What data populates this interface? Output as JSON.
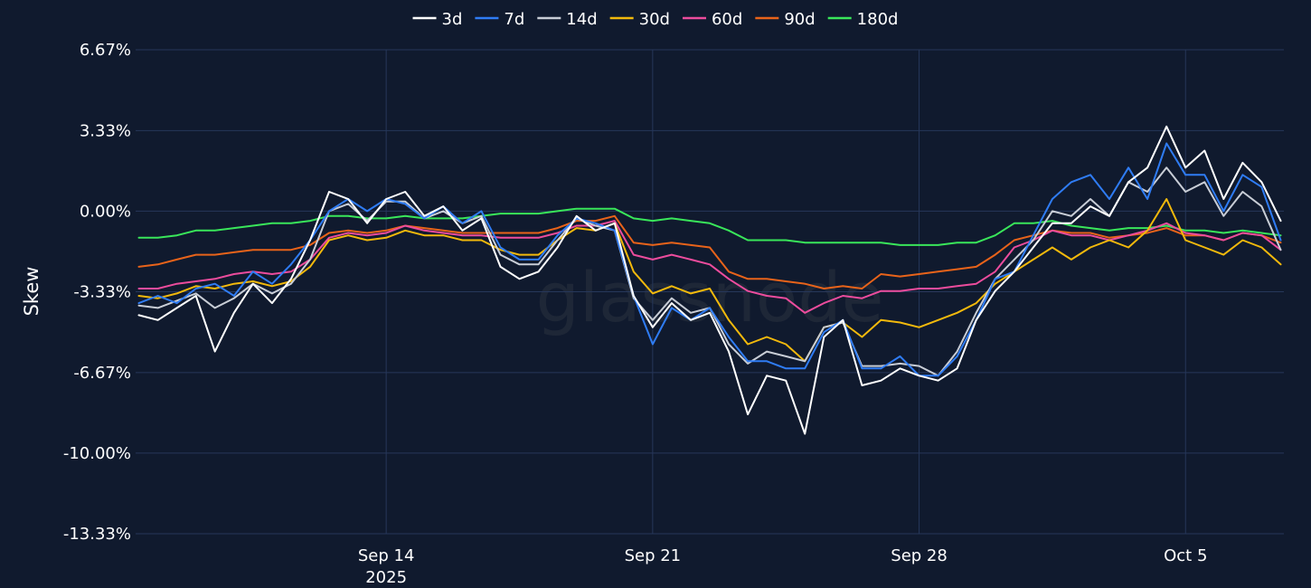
{
  "chart_data": {
    "type": "line",
    "ylabel": "Skew",
    "y_ticks": [
      "6.67%",
      "3.33%",
      "0.00%",
      "-3.33%",
      "-6.67%",
      "-10.00%",
      "-13.33%"
    ],
    "y_tick_values": [
      6.67,
      3.33,
      0.0,
      -3.33,
      -6.67,
      -10.0,
      -13.33
    ],
    "ylim": [
      -13.33,
      6.67
    ],
    "x_ticks": [
      {
        "label": "Sep 14",
        "sublabel": "2025",
        "date": "2025-09-14"
      },
      {
        "label": "Sep 21",
        "sublabel": "",
        "date": "2025-09-21"
      },
      {
        "label": "Sep 28",
        "sublabel": "",
        "date": "2025-09-28"
      },
      {
        "label": "Oct 5",
        "sublabel": "",
        "date": "2025-10-05"
      }
    ],
    "xlim": [
      "2025-09-07T10:00",
      "2025-10-07T14:00"
    ],
    "grid": true,
    "legend_position": "top-center",
    "watermark": "glassnode",
    "x": [
      "2025-09-07T12:00",
      "2025-09-08",
      "2025-09-08T12:00",
      "2025-09-09",
      "2025-09-09T12:00",
      "2025-09-10",
      "2025-09-10T12:00",
      "2025-09-11",
      "2025-09-11T12:00",
      "2025-09-12",
      "2025-09-12T12:00",
      "2025-09-13",
      "2025-09-13T12:00",
      "2025-09-14",
      "2025-09-14T12:00",
      "2025-09-15",
      "2025-09-15T12:00",
      "2025-09-16",
      "2025-09-16T12:00",
      "2025-09-17",
      "2025-09-17T12:00",
      "2025-09-18",
      "2025-09-18T12:00",
      "2025-09-19",
      "2025-09-19T12:00",
      "2025-09-20",
      "2025-09-20T12:00",
      "2025-09-21",
      "2025-09-21T12:00",
      "2025-09-22",
      "2025-09-22T12:00",
      "2025-09-23",
      "2025-09-23T12:00",
      "2025-09-24",
      "2025-09-24T12:00",
      "2025-09-25",
      "2025-09-25T12:00",
      "2025-09-26",
      "2025-09-26T12:00",
      "2025-09-27",
      "2025-09-27T12:00",
      "2025-09-28",
      "2025-09-28T12:00",
      "2025-09-29",
      "2025-09-29T12:00",
      "2025-09-30",
      "2025-09-30T12:00",
      "2025-10-01",
      "2025-10-01T12:00",
      "2025-10-02",
      "2025-10-02T12:00",
      "2025-10-03",
      "2025-10-03T12:00",
      "2025-10-04",
      "2025-10-04T12:00",
      "2025-10-05",
      "2025-10-05T12:00",
      "2025-10-06",
      "2025-10-06T12:00",
      "2025-10-07",
      "2025-10-07T12:00"
    ],
    "series": [
      {
        "name": "3d",
        "color": "#ffffff",
        "values": [
          -4.3,
          -4.5,
          -4.0,
          -3.5,
          -5.8,
          -4.2,
          -3.0,
          -3.8,
          -2.8,
          -1.2,
          0.8,
          0.5,
          -0.5,
          0.5,
          0.8,
          -0.2,
          0.2,
          -0.8,
          -0.3,
          -2.3,
          -2.8,
          -2.5,
          -1.5,
          -0.2,
          -0.8,
          -0.5,
          -3.5,
          -4.8,
          -3.8,
          -4.5,
          -4.2,
          -5.8,
          -8.4,
          -6.8,
          -7.0,
          -9.2,
          -5.2,
          -4.5,
          -7.2,
          -7.0,
          -6.5,
          -6.8,
          -7.0,
          -6.5,
          -4.5,
          -3.3,
          -2.5,
          -1.5,
          -0.5,
          -0.5,
          0.2,
          -0.2,
          1.2,
          1.8,
          3.5,
          1.8,
          2.5,
          0.5,
          2.0,
          1.2,
          -0.4
        ]
      },
      {
        "name": "7d",
        "color": "#2f7cf4",
        "values": [
          -3.8,
          -3.5,
          -3.8,
          -3.2,
          -3.0,
          -3.5,
          -2.5,
          -3.0,
          -2.2,
          -1.2,
          0.0,
          0.5,
          0.0,
          0.5,
          0.3,
          -0.3,
          0.2,
          -0.5,
          0.0,
          -1.5,
          -2.0,
          -2.0,
          -1.0,
          -0.3,
          -0.5,
          -0.8,
          -3.5,
          -5.5,
          -4.0,
          -4.5,
          -4.0,
          -5.2,
          -6.2,
          -6.2,
          -6.5,
          -6.5,
          -5.0,
          -4.5,
          -6.5,
          -6.5,
          -6.0,
          -6.8,
          -6.8,
          -6.0,
          -4.5,
          -2.8,
          -2.5,
          -1.0,
          0.5,
          1.2,
          1.5,
          0.5,
          1.8,
          0.5,
          2.8,
          1.5,
          1.5,
          0.0,
          1.5,
          1.0,
          -1.2
        ]
      },
      {
        "name": "14d",
        "color": "#c8cdd6",
        "values": [
          -3.9,
          -4.0,
          -3.7,
          -3.4,
          -4.0,
          -3.6,
          -3.0,
          -3.4,
          -3.0,
          -2.0,
          0.0,
          0.3,
          -0.4,
          0.4,
          0.4,
          -0.3,
          0.0,
          -0.5,
          -0.2,
          -1.8,
          -2.2,
          -2.2,
          -1.2,
          -0.3,
          -0.6,
          -0.8,
          -3.6,
          -4.5,
          -3.6,
          -4.2,
          -4.0,
          -5.5,
          -6.3,
          -5.8,
          -6.0,
          -6.2,
          -4.8,
          -4.6,
          -6.4,
          -6.4,
          -6.3,
          -6.4,
          -6.8,
          -5.8,
          -4.2,
          -2.8,
          -2.0,
          -1.2,
          0.0,
          -0.2,
          0.5,
          -0.2,
          1.2,
          0.8,
          1.8,
          0.8,
          1.2,
          -0.2,
          0.8,
          0.2,
          -1.6
        ]
      },
      {
        "name": "30d",
        "color": "#f2b90c",
        "values": [
          -3.5,
          -3.6,
          -3.4,
          -3.1,
          -3.2,
          -3.0,
          -2.9,
          -3.1,
          -2.9,
          -2.3,
          -1.2,
          -1.0,
          -1.2,
          -1.1,
          -0.8,
          -1.0,
          -1.0,
          -1.2,
          -1.2,
          -1.6,
          -1.8,
          -1.8,
          -1.2,
          -0.7,
          -0.8,
          -0.5,
          -2.5,
          -3.4,
          -3.1,
          -3.4,
          -3.2,
          -4.5,
          -5.5,
          -5.2,
          -5.5,
          -6.2,
          -4.8,
          -4.6,
          -5.2,
          -4.5,
          -4.6,
          -4.8,
          -4.5,
          -4.2,
          -3.8,
          -3.0,
          -2.5,
          -2.0,
          -1.5,
          -2.0,
          -1.5,
          -1.2,
          -1.5,
          -0.8,
          0.5,
          -1.2,
          -1.5,
          -1.8,
          -1.2,
          -1.5,
          -2.2
        ]
      },
      {
        "name": "60d",
        "color": "#ec4c9d",
        "values": [
          -3.2,
          -3.2,
          -3.0,
          -2.9,
          -2.8,
          -2.6,
          -2.5,
          -2.6,
          -2.5,
          -2.0,
          -1.1,
          -0.9,
          -1.0,
          -0.9,
          -0.6,
          -0.8,
          -0.9,
          -1.0,
          -1.0,
          -1.1,
          -1.1,
          -1.1,
          -0.9,
          -0.6,
          -0.6,
          -0.4,
          -1.8,
          -2.0,
          -1.8,
          -2.0,
          -2.2,
          -2.8,
          -3.3,
          -3.5,
          -3.6,
          -4.2,
          -3.8,
          -3.5,
          -3.6,
          -3.3,
          -3.3,
          -3.2,
          -3.2,
          -3.1,
          -3.0,
          -2.5,
          -1.5,
          -1.2,
          -0.8,
          -1.0,
          -1.0,
          -1.2,
          -1.0,
          -0.8,
          -0.5,
          -0.9,
          -1.0,
          -1.2,
          -0.9,
          -1.0,
          -1.6
        ]
      },
      {
        "name": "90d",
        "color": "#e8631a",
        "values": [
          -2.3,
          -2.2,
          -2.0,
          -1.8,
          -1.8,
          -1.7,
          -1.6,
          -1.6,
          -1.6,
          -1.4,
          -0.9,
          -0.8,
          -0.9,
          -0.8,
          -0.6,
          -0.7,
          -0.8,
          -0.9,
          -0.9,
          -0.9,
          -0.9,
          -0.9,
          -0.7,
          -0.4,
          -0.4,
          -0.2,
          -1.3,
          -1.4,
          -1.3,
          -1.4,
          -1.5,
          -2.5,
          -2.8,
          -2.8,
          -2.9,
          -3.0,
          -3.2,
          -3.1,
          -3.2,
          -2.6,
          -2.7,
          -2.6,
          -2.5,
          -2.4,
          -2.3,
          -1.8,
          -1.2,
          -1.0,
          -0.8,
          -0.9,
          -0.9,
          -1.1,
          -1.0,
          -0.9,
          -0.7,
          -1.0,
          -1.0,
          -1.2,
          -0.9,
          -1.0,
          -1.3
        ]
      },
      {
        "name": "180d",
        "color": "#39e65a",
        "values": [
          -1.1,
          -1.1,
          -1.0,
          -0.8,
          -0.8,
          -0.7,
          -0.6,
          -0.5,
          -0.5,
          -0.4,
          -0.2,
          -0.2,
          -0.3,
          -0.3,
          -0.2,
          -0.3,
          -0.3,
          -0.3,
          -0.2,
          -0.1,
          -0.1,
          -0.1,
          0.0,
          0.1,
          0.1,
          0.1,
          -0.3,
          -0.4,
          -0.3,
          -0.4,
          -0.5,
          -0.8,
          -1.2,
          -1.2,
          -1.2,
          -1.3,
          -1.3,
          -1.3,
          -1.3,
          -1.3,
          -1.4,
          -1.4,
          -1.4,
          -1.3,
          -1.3,
          -1.0,
          -0.5,
          -0.5,
          -0.4,
          -0.6,
          -0.7,
          -0.8,
          -0.7,
          -0.7,
          -0.6,
          -0.8,
          -0.8,
          -0.9,
          -0.8,
          -0.9,
          -1.0
        ]
      }
    ]
  }
}
